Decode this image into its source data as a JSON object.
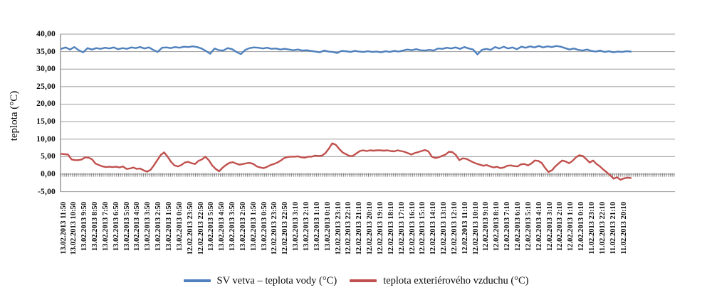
{
  "chart_data": {
    "type": "line",
    "title": "",
    "ylabel": "teplota (°C)",
    "xlabel": "",
    "ylim": [
      -5,
      40
    ],
    "ytick_step": 5,
    "ytick_labels": [
      "40,00",
      "35,00",
      "30,00",
      "25,00",
      "20,00",
      "15,00",
      "10,00",
      "5,00",
      "0,00",
      "-5,00"
    ],
    "grid": "horizontal",
    "zero_axis_ticks": true,
    "legend_position": "bottom",
    "x_labels": [
      "13.02.2013 11:50",
      "13.02.2013 10:50",
      "13.02.2013 9:50",
      "13.02.2013 8:50",
      "13.02.2013 7:50",
      "13.02.2013 6:50",
      "13.02.2013 5:50",
      "13.02.2013 4:50",
      "13.02.2013 3:50",
      "13.02.2013 2:50",
      "13.02.2013 1:50",
      "13.02.2013 0:50",
      "12.02.2013 23:50",
      "12.02.2013 22:50",
      "13.02.2013 5:50",
      "13.02.2013 4:50",
      "13.02.2013 3:50",
      "13.02.2013 2:50",
      "13.02.2013 1:50",
      "13.02.2013 0:50",
      "12.02.2013 23:50",
      "12.02.2013 22:50",
      "13.02.2013 3:10",
      "13.02.2013 2:10",
      "13.02.2013 1:10",
      "13.02.2013 0:10",
      "12.02.2013 23:10",
      "12.02.2013 22:10",
      "12.02.2013 21:10",
      "12.02.2013 20:10",
      "12.02.2013 19:10",
      "12.02.2013 18:10",
      "12.02.2013 17:10",
      "12.02.2013 16:10",
      "12.02.2013 15:10",
      "12.02.2013 14:10",
      "12.02.2013 13:10",
      "12.02.2013 12:10",
      "12.02.2013 11:10",
      "12.02.2013 10:10",
      "12.02.2013 9:10",
      "12.02.2013 8:10",
      "12.02.2013 7:10",
      "12.02.2013 6:10",
      "12.02.2013 5:10",
      "12.02.2013 4:10",
      "12.02.2013 3:10",
      "12.02.2013 2:10",
      "12.02.2013 1:10",
      "12.02.2013 0:10",
      "11.02.2013 23:10",
      "11.02.2013 22:10",
      "11.02.2013 21:10",
      "11.02.2013 20:10"
    ],
    "series": [
      {
        "name": "SV vetva – teplota vody (°C)",
        "color": "#4F81BD",
        "values": [
          35.8,
          36.2,
          35.6,
          36.3,
          35.4,
          34.8,
          36.0,
          35.6,
          36.0,
          35.8,
          36.1,
          35.9,
          36.2,
          35.7,
          36.0,
          35.8,
          36.2,
          36.0,
          36.3,
          35.9,
          36.2,
          35.5,
          34.9,
          36.1,
          36.2,
          36.0,
          36.3,
          36.1,
          36.4,
          36.3,
          36.5,
          36.3,
          35.9,
          35.2,
          34.4,
          35.9,
          35.4,
          35.3,
          36.0,
          35.7,
          34.9,
          34.3,
          35.5,
          36.0,
          36.2,
          36.1,
          35.9,
          36.1,
          35.8,
          35.9,
          35.6,
          35.8,
          35.6,
          35.4,
          35.6,
          35.3,
          35.4,
          35.2,
          35.0,
          34.8,
          35.3,
          35.0,
          34.9,
          34.6,
          35.2,
          35.1,
          34.9,
          35.2,
          35.0,
          34.9,
          35.1,
          34.9,
          35.0,
          34.8,
          35.1,
          34.9,
          35.2,
          35.0,
          35.3,
          35.6,
          35.4,
          35.7,
          35.4,
          35.3,
          35.5,
          35.3,
          35.9,
          35.8,
          36.1,
          35.9,
          36.2,
          35.8,
          36.3,
          35.9,
          35.6,
          34.2,
          35.5,
          35.8,
          35.5,
          36.3,
          35.9,
          36.4,
          35.9,
          36.2,
          35.7,
          36.4,
          36.1,
          36.5,
          36.2,
          36.6,
          36.2,
          36.5,
          36.3,
          36.6,
          36.4,
          36.0,
          35.6,
          35.9,
          35.5,
          35.3,
          35.6,
          35.2,
          35.0,
          35.3,
          34.9,
          35.1,
          34.8,
          35.0,
          34.9,
          35.1,
          35.0
        ]
      },
      {
        "name": "teplota exteriérového vzduchu (°C)",
        "color": "#C0504D",
        "values": [
          5.8,
          5.7,
          5.6,
          4.2,
          4.0,
          4.0,
          4.2,
          4.8,
          4.7,
          4.2,
          3.0,
          2.6,
          2.2,
          2.0,
          2.1,
          2.0,
          2.1,
          1.9,
          2.2,
          1.5,
          1.6,
          1.9,
          1.5,
          1.6,
          1.1,
          0.7,
          1.2,
          2.5,
          4.0,
          5.5,
          6.2,
          5.0,
          3.5,
          2.5,
          2.2,
          2.6,
          3.3,
          3.5,
          3.1,
          2.9,
          3.8,
          4.2,
          5.0,
          4.0,
          2.5,
          1.5,
          0.8,
          1.8,
          2.6,
          3.2,
          3.4,
          3.0,
          2.7,
          2.9,
          3.1,
          3.2,
          2.9,
          2.2,
          1.9,
          1.7,
          2.1,
          2.6,
          2.9,
          3.3,
          3.9,
          4.6,
          4.9,
          5.0,
          5.0,
          5.1,
          4.8,
          4.7,
          5.0,
          5.0,
          5.3,
          5.2,
          5.3,
          6.0,
          7.3,
          8.8,
          8.4,
          7.2,
          6.2,
          5.7,
          5.2,
          5.2,
          5.9,
          6.6,
          6.8,
          6.6,
          6.8,
          6.7,
          6.8,
          6.8,
          6.7,
          6.8,
          6.6,
          6.5,
          6.8,
          6.6,
          6.4,
          6.0,
          5.6,
          6.0,
          6.3,
          6.6,
          6.9,
          6.5,
          5.0,
          4.6,
          4.8,
          5.2,
          5.6,
          6.4,
          6.3,
          5.5,
          4.0,
          4.5,
          4.4,
          3.9,
          3.4,
          3.0,
          2.7,
          2.4,
          2.6,
          2.2,
          1.9,
          2.1,
          1.7,
          1.9,
          2.4,
          2.5,
          2.3,
          2.2,
          2.8,
          2.9,
          2.5,
          3.0,
          3.9,
          3.8,
          3.2,
          1.8,
          0.6,
          1.1,
          2.2,
          3.1,
          3.9,
          3.6,
          3.1,
          3.8,
          4.8,
          5.4,
          5.2,
          4.3,
          3.3,
          3.9,
          2.9,
          2.2,
          1.3,
          0.5,
          -0.3,
          -1.3,
          -0.9,
          -1.6,
          -1.2,
          -1.0,
          -1.1
        ]
      }
    ]
  }
}
